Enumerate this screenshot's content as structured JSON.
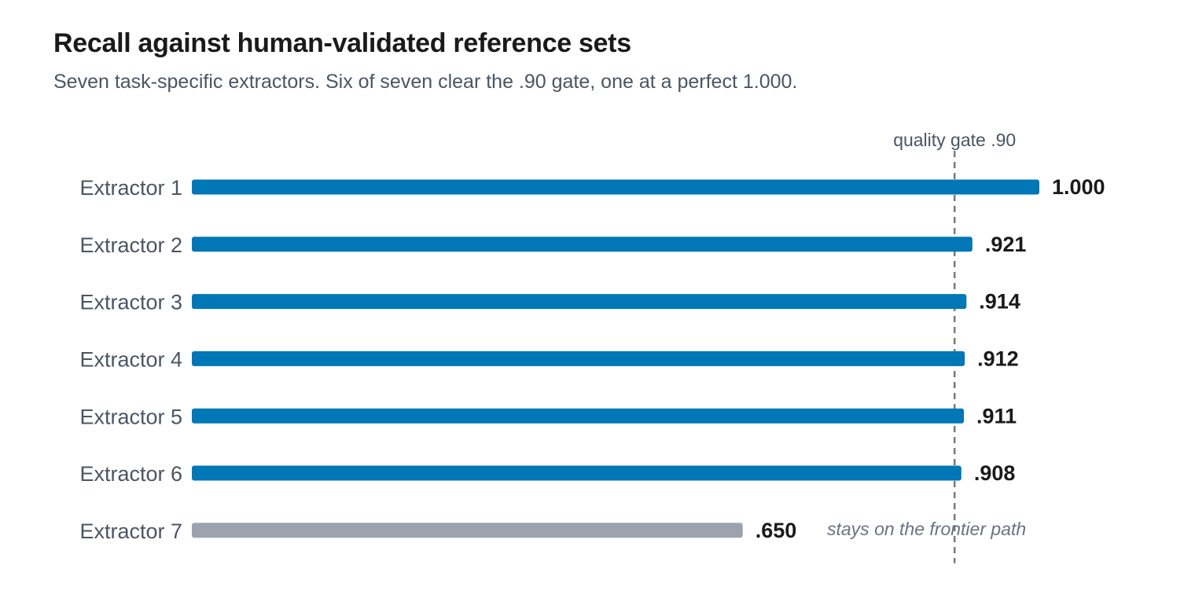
{
  "chart_data": {
    "type": "bar",
    "orientation": "horizontal",
    "title": "Recall against human-validated reference sets",
    "subtitle": "Seven task-specific extractors. Six of seven clear the .90 gate, one at a perfect 1.000.",
    "categories": [
      "Extractor 1",
      "Extractor 2",
      "Extractor 3",
      "Extractor 4",
      "Extractor 5",
      "Extractor 6",
      "Extractor 7"
    ],
    "values": [
      1.0,
      0.921,
      0.914,
      0.912,
      0.911,
      0.908,
      0.65
    ],
    "value_labels": [
      "1.000",
      ".921",
      ".914",
      ".912",
      ".911",
      ".908",
      ".650"
    ],
    "xlim": [
      0,
      1
    ],
    "grid": false,
    "reference_line": {
      "value": 0.9,
      "label": "quality gate .90",
      "style": "dashed"
    },
    "annotations": [
      {
        "category": "Extractor 7",
        "text": "stays on the frontier path"
      }
    ],
    "colors": {
      "pass": "#0077b6",
      "fail": "#9ca3af",
      "reference_line": "#7a7a7a"
    }
  }
}
